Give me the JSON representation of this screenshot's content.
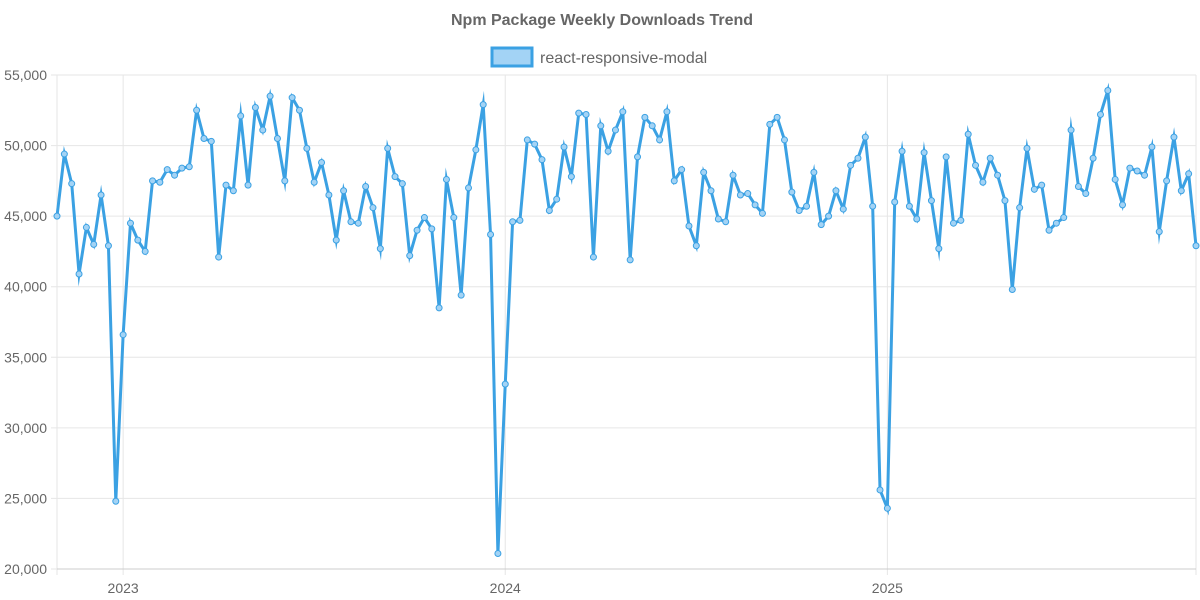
{
  "chart_data": {
    "type": "line",
    "title": "Npm Package Weekly Downloads Trend",
    "xlabel": "",
    "ylabel": "",
    "ylim": [
      20000,
      55000
    ],
    "grid": true,
    "legend_position": "top-center",
    "colors": {
      "line": "#3ba1e3",
      "fill": "#a3d3f5",
      "grid": "#e6e6e6",
      "text": "#666666"
    },
    "x_ticks": [
      {
        "label": "2023",
        "index": 9
      },
      {
        "label": "2024",
        "index": 61
      },
      {
        "label": "2025",
        "index": 113
      }
    ],
    "y_ticks": [
      "20,000",
      "25,000",
      "30,000",
      "35,000",
      "40,000",
      "45,000",
      "50,000",
      "55,000"
    ],
    "y_tick_values": [
      20000,
      25000,
      30000,
      35000,
      40000,
      45000,
      50000,
      55000
    ],
    "series": [
      {
        "name": "react-responsive-modal",
        "values": [
          45000,
          49400,
          47300,
          40900,
          44200,
          43000,
          46500,
          42900,
          24800,
          36600,
          44500,
          43300,
          42500,
          47500,
          47400,
          48300,
          47900,
          48400,
          48500,
          52500,
          50500,
          50300,
          42100,
          47200,
          46800,
          52100,
          47200,
          52700,
          51100,
          53500,
          50500,
          47500,
          53400,
          52500,
          49800,
          47400,
          48800,
          46500,
          43300,
          46800,
          44600,
          44500,
          47100,
          45600,
          42700,
          49800,
          47800,
          47300,
          42200,
          44000,
          44900,
          44100,
          38500,
          47600,
          44900,
          39400,
          47000,
          49700,
          52900,
          43700,
          21100,
          33100,
          44600,
          44700,
          50400,
          50100,
          49000,
          45400,
          46200,
          49900,
          47800,
          52300,
          52200,
          42100,
          51400,
          49600,
          51100,
          52400,
          41900,
          49200,
          52000,
          51400,
          50400,
          52400,
          47500,
          48300,
          44300,
          42900,
          48100,
          46800,
          44800,
          44600,
          47900,
          46500,
          46600,
          45800,
          45200,
          51500,
          52000,
          50400,
          46700,
          45400,
          45700,
          48100,
          44400,
          45000,
          46800,
          45500,
          48600,
          49100,
          50600,
          45700,
          25600,
          24300,
          46000,
          49600,
          45700,
          44800,
          49500,
          46100,
          42700,
          49200,
          44500,
          44700,
          50800,
          48600,
          47400,
          49100,
          47900,
          46100,
          39800,
          45600,
          49800,
          46900,
          47200,
          44000,
          44500,
          44900,
          51100,
          47100,
          46600,
          49100,
          52200,
          53900,
          47600,
          45800,
          48400,
          48200,
          47900,
          49900,
          43900,
          47500,
          50600,
          46800,
          48000,
          42900
        ]
      }
    ]
  }
}
